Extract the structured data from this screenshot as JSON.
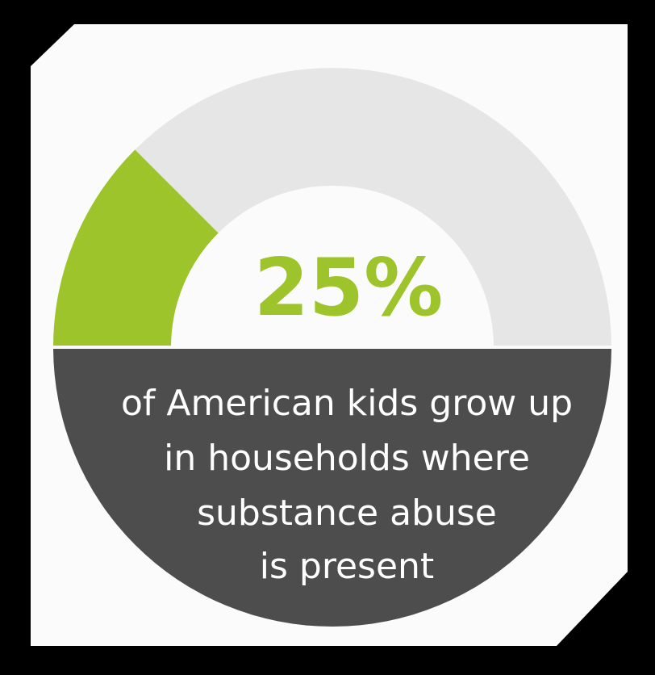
{
  "headline": {
    "value": "25%"
  },
  "caption": {
    "lines": [
      "of American kids grow up",
      "in households where",
      "substance abuse",
      "is present"
    ]
  },
  "gauge": {
    "fraction": 0.25,
    "filled_color": "#9dc42a",
    "track_color": "#e6e6e6",
    "lower_color": "#4d4d4d"
  },
  "colors": {
    "frame": "#000000",
    "panel": "#fbfbfb",
    "headline_text": "#9dc42a",
    "caption_text": "#ffffff"
  }
}
